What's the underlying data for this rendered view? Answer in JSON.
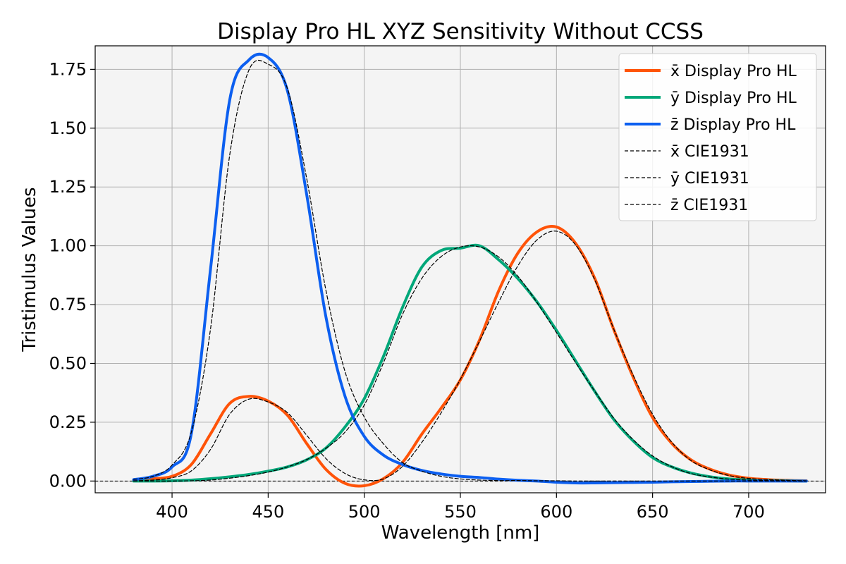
{
  "chart_data": {
    "type": "line",
    "title": "Display Pro HL XYZ Sensitivity Without CCSS",
    "xlabel": "Wavelength [nm]",
    "ylabel": "Tristimulus Values",
    "xlim": [
      360,
      740
    ],
    "ylim": [
      -0.05,
      1.85
    ],
    "xticks": [
      400,
      450,
      500,
      550,
      600,
      650,
      700
    ],
    "yticks": [
      0.0,
      0.25,
      0.5,
      0.75,
      1.0,
      1.25,
      1.5,
      1.75
    ],
    "ytick_decimals": 2,
    "grid": true,
    "legend_position": "top-right",
    "x": [
      380,
      390,
      400,
      410,
      420,
      430,
      440,
      450,
      460,
      470,
      480,
      490,
      500,
      510,
      520,
      530,
      540,
      550,
      560,
      570,
      580,
      590,
      600,
      610,
      620,
      630,
      640,
      650,
      660,
      670,
      680,
      690,
      700,
      710,
      720,
      730
    ],
    "series": [
      {
        "name": "x̄ Display Pro HL",
        "color": "#ff5308",
        "style": "solid",
        "values": [
          0.004,
          0.01,
          0.02,
          0.07,
          0.2,
          0.33,
          0.36,
          0.34,
          0.28,
          0.16,
          0.05,
          -0.01,
          -0.02,
          0.01,
          0.08,
          0.2,
          0.31,
          0.43,
          0.6,
          0.81,
          0.97,
          1.06,
          1.08,
          1.01,
          0.86,
          0.64,
          0.44,
          0.27,
          0.16,
          0.09,
          0.05,
          0.025,
          0.012,
          0.006,
          0.003,
          0.001
        ]
      },
      {
        "name": "ȳ Display Pro HL",
        "color": "#00a779",
        "style": "solid",
        "values": [
          0.0,
          0.0,
          0.001,
          0.004,
          0.01,
          0.018,
          0.028,
          0.042,
          0.06,
          0.09,
          0.14,
          0.23,
          0.35,
          0.53,
          0.74,
          0.91,
          0.98,
          0.99,
          1.0,
          0.94,
          0.86,
          0.76,
          0.64,
          0.51,
          0.38,
          0.26,
          0.17,
          0.1,
          0.06,
          0.034,
          0.018,
          0.009,
          0.004,
          0.002,
          0.001,
          0.0
        ]
      },
      {
        "name": "z̄ Display Pro HL",
        "color": "#0c5ff0",
        "style": "solid",
        "values": [
          0.006,
          0.02,
          0.06,
          0.2,
          0.9,
          1.62,
          1.79,
          1.8,
          1.66,
          1.22,
          0.7,
          0.36,
          0.19,
          0.11,
          0.07,
          0.045,
          0.03,
          0.02,
          0.015,
          0.008,
          0.003,
          0.0,
          -0.005,
          -0.008,
          -0.008,
          -0.007,
          -0.006,
          -0.005,
          -0.003,
          -0.002,
          -0.001,
          0.0,
          0.0,
          0.0,
          0.0,
          0.0
        ]
      },
      {
        "name": "x̄ CIE1931",
        "color": "#000000",
        "style": "dashed",
        "values": [
          0.001,
          0.004,
          0.014,
          0.043,
          0.134,
          0.284,
          0.348,
          0.336,
          0.291,
          0.195,
          0.096,
          0.032,
          0.005,
          0.009,
          0.063,
          0.165,
          0.29,
          0.433,
          0.595,
          0.762,
          0.916,
          1.026,
          1.062,
          1.003,
          0.854,
          0.642,
          0.448,
          0.284,
          0.165,
          0.087,
          0.047,
          0.023,
          0.011,
          0.006,
          0.003,
          0.001
        ]
      },
      {
        "name": "ȳ CIE1931",
        "color": "#000000",
        "style": "dashed",
        "values": [
          0.0,
          0.0,
          0.0,
          0.001,
          0.004,
          0.012,
          0.023,
          0.038,
          0.06,
          0.091,
          0.139,
          0.208,
          0.323,
          0.503,
          0.71,
          0.862,
          0.954,
          0.995,
          0.995,
          0.952,
          0.87,
          0.757,
          0.631,
          0.503,
          0.381,
          0.265,
          0.175,
          0.107,
          0.061,
          0.032,
          0.017,
          0.008,
          0.004,
          0.002,
          0.001,
          0.0
        ]
      },
      {
        "name": "z̄ CIE1931",
        "color": "#000000",
        "style": "dashed",
        "values": [
          0.007,
          0.02,
          0.068,
          0.207,
          0.646,
          1.386,
          1.747,
          1.772,
          1.669,
          1.288,
          0.813,
          0.465,
          0.272,
          0.158,
          0.078,
          0.042,
          0.02,
          0.009,
          0.004,
          0.002,
          0.002,
          0.001,
          0.001,
          0.0,
          0.0,
          0.0,
          0.0,
          0.0,
          0.0,
          0.0,
          0.0,
          0.0,
          0.0,
          0.0,
          0.0,
          0.0
        ]
      }
    ]
  }
}
